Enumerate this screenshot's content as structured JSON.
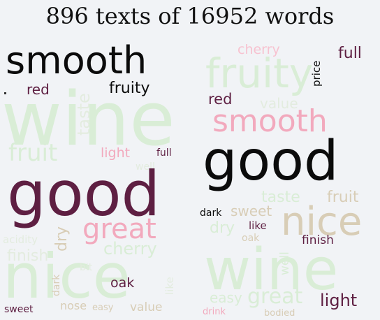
{
  "title": "896 texts of 16952 words",
  "colors": {
    "background": "#f1f3f6",
    "light_green": "#d9edd6",
    "pale_green": "#e3ecdf",
    "khaki": "#d8cdb6",
    "pink": "#f2a9bd",
    "light_pink": "#f7c2d0",
    "maroon": "#5e1f42",
    "black": "#0b0b0b"
  },
  "clouds": [
    {
      "words": [
        "smooth",
        "red",
        "fruity",
        "taste",
        "wine",
        "fruit",
        "light",
        "full",
        "well",
        "good",
        "dry",
        "great",
        "acidity",
        "cherry",
        "finish",
        "bit",
        "like",
        "dark",
        "oak",
        "nice",
        "sweet",
        "nose",
        "easy",
        "value"
      ]
    },
    {
      "words": [
        "cherry",
        "price",
        "full",
        "fruity",
        "red",
        "value",
        "smooth",
        "good",
        "dark",
        "sweet",
        "taste",
        "fruit",
        "dry",
        "like",
        "oak",
        "nice",
        "well",
        "finish",
        "wine",
        "easy",
        "great",
        "light",
        "drink",
        "bodied"
      ]
    }
  ]
}
